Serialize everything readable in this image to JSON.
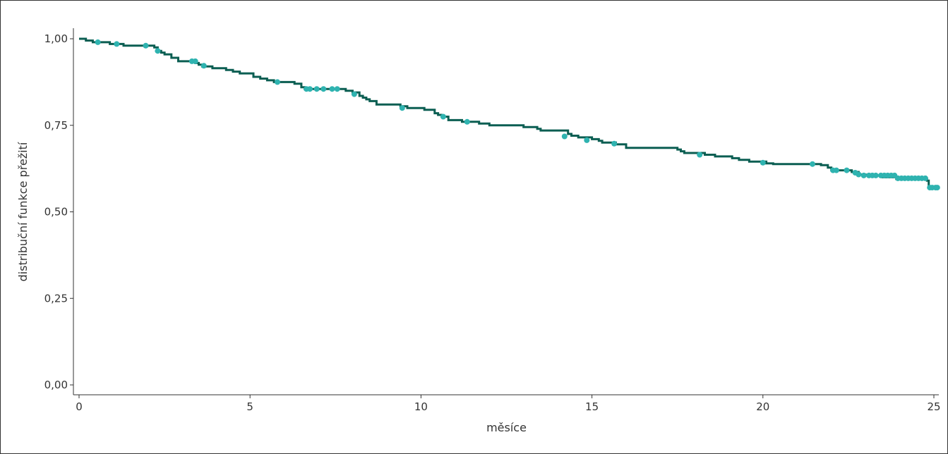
{
  "chart_data": {
    "type": "line",
    "subtype": "kaplan-meier-step",
    "title": "",
    "xlabel": "měsíce",
    "ylabel": "distribuční funkce přežití",
    "xlim": [
      0,
      25
    ],
    "ylim": [
      0,
      1
    ],
    "x_ticks": [
      0,
      5,
      10,
      15,
      20,
      25
    ],
    "x_tick_labels": [
      "0",
      "5",
      "10",
      "15",
      "20",
      "25"
    ],
    "y_ticks": [
      0,
      0.25,
      0.5,
      0.75,
      1
    ],
    "y_tick_labels": [
      "0,00",
      "0,25",
      "0,50",
      "0,75",
      "1,00"
    ],
    "grid": false,
    "legend": "none",
    "colors": {
      "line": "#0b5e52",
      "censor": "#2fb3b0",
      "axis": "#333333"
    },
    "series": [
      {
        "step_points": [
          [
            0,
            1.0
          ],
          [
            0.2,
            0.995
          ],
          [
            0.4,
            0.99
          ],
          [
            0.9,
            0.985
          ],
          [
            1.3,
            0.98
          ],
          [
            2.2,
            0.975
          ],
          [
            2.3,
            0.965
          ],
          [
            2.4,
            0.96
          ],
          [
            2.5,
            0.955
          ],
          [
            2.7,
            0.945
          ],
          [
            2.9,
            0.935
          ],
          [
            3.4,
            0.93
          ],
          [
            3.5,
            0.925
          ],
          [
            3.6,
            0.92
          ],
          [
            3.9,
            0.915
          ],
          [
            4.3,
            0.91
          ],
          [
            4.5,
            0.905
          ],
          [
            4.7,
            0.9
          ],
          [
            5.1,
            0.89
          ],
          [
            5.3,
            0.885
          ],
          [
            5.5,
            0.88
          ],
          [
            5.7,
            0.875
          ],
          [
            6.3,
            0.87
          ],
          [
            6.5,
            0.86
          ],
          [
            6.6,
            0.855
          ],
          [
            7.8,
            0.85
          ],
          [
            8.0,
            0.845
          ],
          [
            8.2,
            0.835
          ],
          [
            8.3,
            0.83
          ],
          [
            8.4,
            0.825
          ],
          [
            8.5,
            0.82
          ],
          [
            8.7,
            0.81
          ],
          [
            9.4,
            0.805
          ],
          [
            9.6,
            0.8
          ],
          [
            10.1,
            0.795
          ],
          [
            10.4,
            0.785
          ],
          [
            10.5,
            0.78
          ],
          [
            10.6,
            0.775
          ],
          [
            10.8,
            0.765
          ],
          [
            11.2,
            0.76
          ],
          [
            11.7,
            0.755
          ],
          [
            12.0,
            0.75
          ],
          [
            13.0,
            0.745
          ],
          [
            13.4,
            0.74
          ],
          [
            13.5,
            0.735
          ],
          [
            14.3,
            0.725
          ],
          [
            14.4,
            0.72
          ],
          [
            14.6,
            0.715
          ],
          [
            15.0,
            0.71
          ],
          [
            15.2,
            0.705
          ],
          [
            15.3,
            0.7
          ],
          [
            15.7,
            0.695
          ],
          [
            16.0,
            0.685
          ],
          [
            17.5,
            0.68
          ],
          [
            17.6,
            0.675
          ],
          [
            17.7,
            0.67
          ],
          [
            18.3,
            0.665
          ],
          [
            18.6,
            0.66
          ],
          [
            19.1,
            0.655
          ],
          [
            19.3,
            0.65
          ],
          [
            19.6,
            0.645
          ],
          [
            20.1,
            0.64
          ],
          [
            20.3,
            0.638
          ],
          [
            21.7,
            0.635
          ],
          [
            21.9,
            0.628
          ],
          [
            22.0,
            0.62
          ],
          [
            22.6,
            0.615
          ],
          [
            22.8,
            0.608
          ],
          [
            23.0,
            0.605
          ],
          [
            23.5,
            0.6
          ],
          [
            23.9,
            0.595
          ],
          [
            24.8,
            0.59
          ],
          [
            24.85,
            0.57
          ],
          [
            25.0,
            0.568
          ]
        ],
        "censored": [
          [
            0.55,
            0.99
          ],
          [
            1.1,
            0.985
          ],
          [
            1.95,
            0.98
          ],
          [
            2.3,
            0.965
          ],
          [
            3.3,
            0.935
          ],
          [
            3.4,
            0.935
          ],
          [
            3.65,
            0.922
          ],
          [
            5.8,
            0.875
          ],
          [
            6.65,
            0.855
          ],
          [
            6.75,
            0.855
          ],
          [
            6.95,
            0.855
          ],
          [
            7.15,
            0.855
          ],
          [
            7.4,
            0.855
          ],
          [
            7.55,
            0.855
          ],
          [
            8.05,
            0.84
          ],
          [
            9.45,
            0.8
          ],
          [
            10.65,
            0.775
          ],
          [
            11.35,
            0.76
          ],
          [
            14.2,
            0.718
          ],
          [
            14.85,
            0.707
          ],
          [
            15.65,
            0.697
          ],
          [
            18.15,
            0.665
          ],
          [
            20.0,
            0.642
          ],
          [
            21.45,
            0.638
          ],
          [
            22.05,
            0.62
          ],
          [
            22.15,
            0.62
          ],
          [
            22.45,
            0.62
          ],
          [
            22.7,
            0.613
          ],
          [
            22.8,
            0.608
          ],
          [
            22.95,
            0.605
          ],
          [
            23.1,
            0.605
          ],
          [
            23.2,
            0.605
          ],
          [
            23.3,
            0.605
          ],
          [
            23.45,
            0.605
          ],
          [
            23.55,
            0.605
          ],
          [
            23.65,
            0.605
          ],
          [
            23.75,
            0.605
          ],
          [
            23.85,
            0.605
          ],
          [
            23.95,
            0.597
          ],
          [
            24.05,
            0.597
          ],
          [
            24.15,
            0.597
          ],
          [
            24.25,
            0.597
          ],
          [
            24.35,
            0.597
          ],
          [
            24.45,
            0.597
          ],
          [
            24.55,
            0.597
          ],
          [
            24.65,
            0.597
          ],
          [
            24.75,
            0.597
          ],
          [
            24.88,
            0.57
          ],
          [
            24.95,
            0.57
          ],
          [
            25.05,
            0.57
          ],
          [
            25.1,
            0.57
          ]
        ]
      }
    ]
  }
}
